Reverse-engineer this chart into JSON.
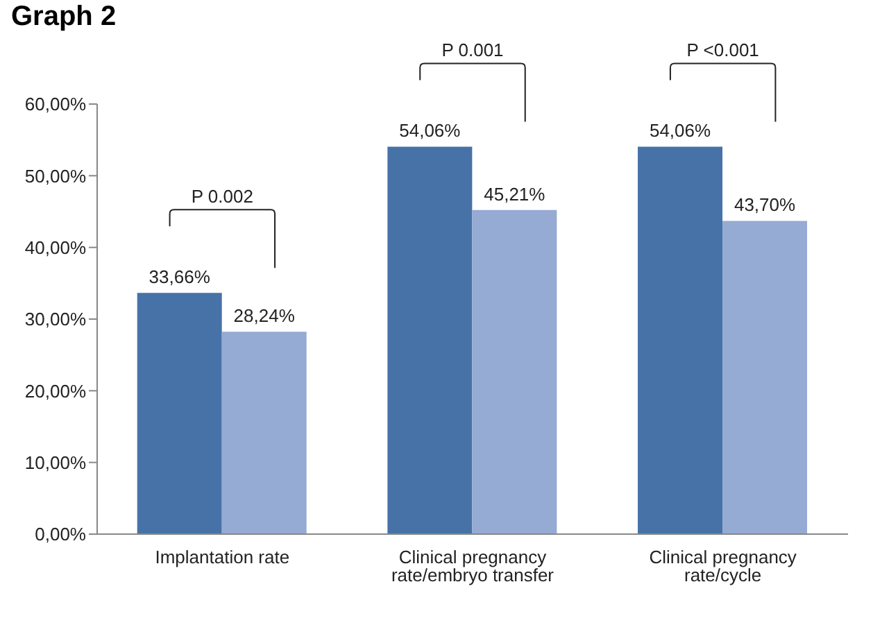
{
  "chart_data": {
    "type": "bar",
    "title": "Graph 2",
    "categories": [
      "Implantation rate",
      "Clinical pregnancy rate/embryo transfer",
      "Clinical pregnancy rate/cycle"
    ],
    "series": [
      {
        "color": "#4672a8",
        "values": [
          33.66,
          54.06,
          54.06
        ],
        "value_labels": [
          "33,66%",
          "54,06%",
          "54,06%"
        ]
      },
      {
        "color": "#95abd3",
        "values": [
          28.24,
          45.21,
          43.7
        ],
        "value_labels": [
          "28,24%",
          "45,21%",
          "43,70%"
        ]
      }
    ],
    "ylim": [
      0,
      60
    ],
    "yticks": [
      {
        "value": 0,
        "label": "0,00%"
      },
      {
        "value": 10,
        "label": "10,00%"
      },
      {
        "value": 20,
        "label": "20,00%"
      },
      {
        "value": 30,
        "label": "30,00%"
      },
      {
        "value": 40,
        "label": "40,00%"
      },
      {
        "value": 50,
        "label": "50,00%"
      },
      {
        "value": 60,
        "label": "60,00%"
      }
    ],
    "annotations": [
      "P 0.002",
      "P 0.001",
      "P <0.001"
    ],
    "grid": false,
    "legend": false
  }
}
